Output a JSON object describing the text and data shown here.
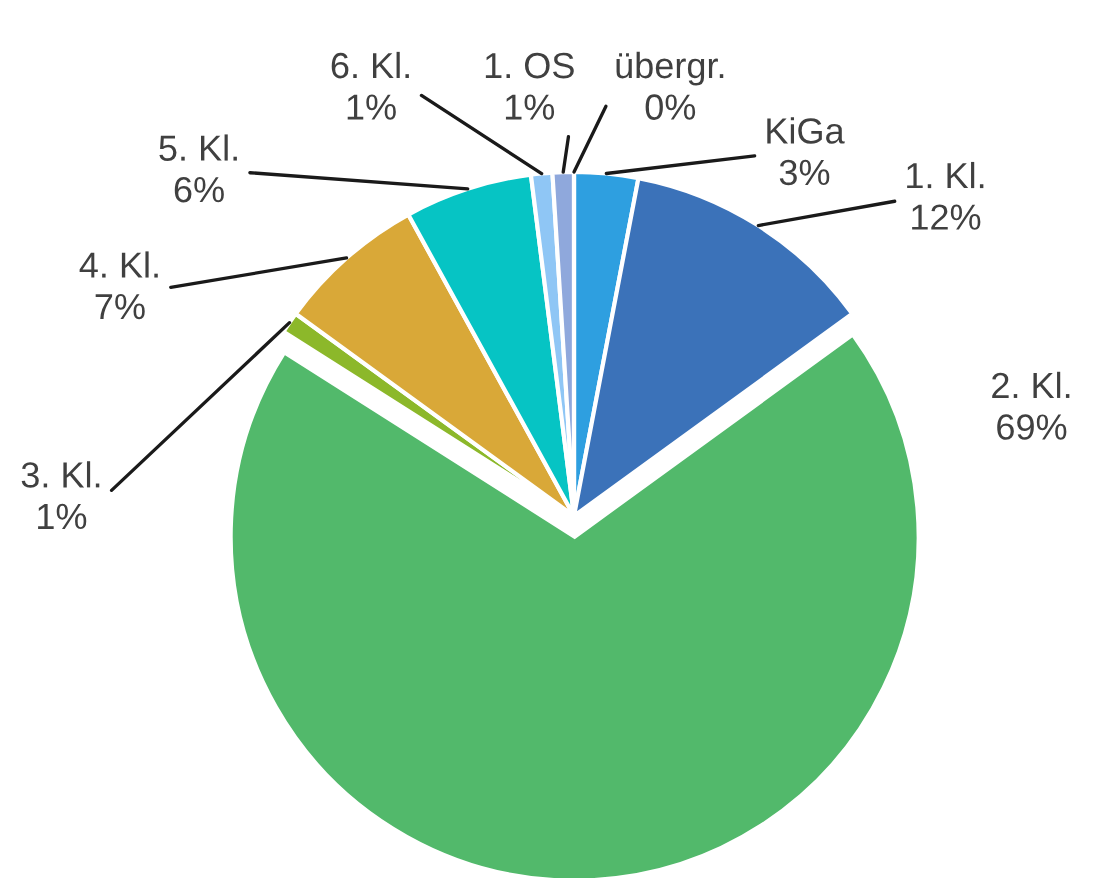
{
  "chart_data": {
    "type": "pie",
    "categories": [
      "KiGa",
      "1. Kl.",
      "2. Kl.",
      "3. Kl.",
      "4. Kl.",
      "5. Kl.",
      "6. Kl.",
      "1. OS",
      "übergr."
    ],
    "values": [
      3,
      12,
      69,
      1,
      7,
      6,
      1,
      1,
      0
    ],
    "value_labels": [
      "3%",
      "12%",
      "69%",
      "1%",
      "7%",
      "6%",
      "1%",
      "1%",
      "0%"
    ],
    "colors": [
      "#2e9fe0",
      "#3b72b9",
      "#52b96b",
      "#8cb82a",
      "#d9a838",
      "#06c4c4",
      "#8fc6f5",
      "#8fa8dc",
      "#a8d08d"
    ],
    "legend": false
  }
}
